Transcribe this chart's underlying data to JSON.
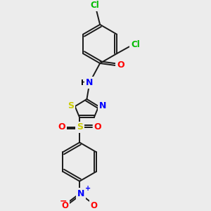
{
  "background_color": "#ececec",
  "bond_color": "#1a1a1a",
  "atom_colors": {
    "Cl": "#00bb00",
    "O": "#ff0000",
    "N": "#0000ff",
    "S": "#cccc00",
    "C": "#1a1a1a",
    "H": "#1a1a1a"
  },
  "figsize": [
    3.0,
    3.0
  ],
  "dpi": 100,
  "xlim": [
    0,
    300
  ],
  "ylim": [
    0,
    300
  ]
}
